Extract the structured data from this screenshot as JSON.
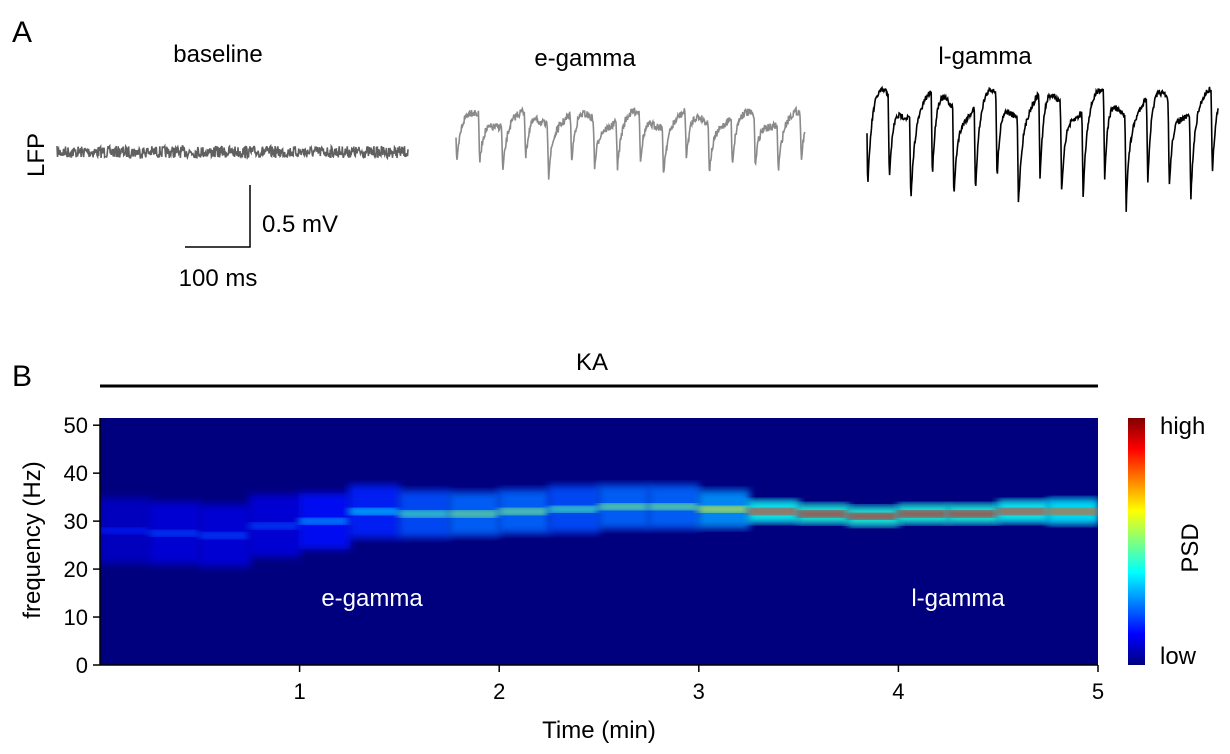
{
  "panel_a": {
    "label": "A",
    "y_label": "LFP",
    "traces": [
      {
        "title": "baseline"
      },
      {
        "title": "e-gamma"
      },
      {
        "title": "l-gamma"
      }
    ],
    "scale_bar": {
      "amplitude": "0.5 mV",
      "duration": "100 ms"
    }
  },
  "chart_data": {
    "type": "heatmap",
    "panel_label": "B",
    "treatment": "KA",
    "x_label": "Time (min)",
    "y_label": "frequency (Hz)",
    "colorbar_label": "PSD",
    "colorbar_high": "high",
    "colorbar_low": "low",
    "annotations": [
      "e-gamma",
      "l-gamma"
    ],
    "x": [
      0.25,
      0.5,
      0.75,
      1.0,
      1.25,
      1.5,
      1.75,
      2.0,
      2.25,
      2.5,
      2.75,
      3.0,
      3.25,
      3.5,
      3.75,
      4.0,
      4.25,
      4.5,
      4.75,
      5.0
    ],
    "values": [
      28,
      27.5,
      27,
      29,
      30,
      32,
      31.5,
      31.5,
      32,
      32.5,
      33,
      33,
      32.5,
      32,
      31.5,
      31,
      31.5,
      31.5,
      32,
      32
    ],
    "psd": [
      0.15,
      0.2,
      0.2,
      0.2,
      0.3,
      0.35,
      0.45,
      0.5,
      0.5,
      0.45,
      0.5,
      0.5,
      0.6,
      0.85,
      0.9,
      0.9,
      0.9,
      0.9,
      0.85,
      0.8
    ],
    "xlim": [
      0,
      5
    ],
    "ylim": [
      0,
      51.5
    ],
    "xticks": [
      1,
      2,
      3,
      4,
      5
    ],
    "yticks": [
      0,
      10,
      20,
      30,
      40,
      50
    ]
  }
}
